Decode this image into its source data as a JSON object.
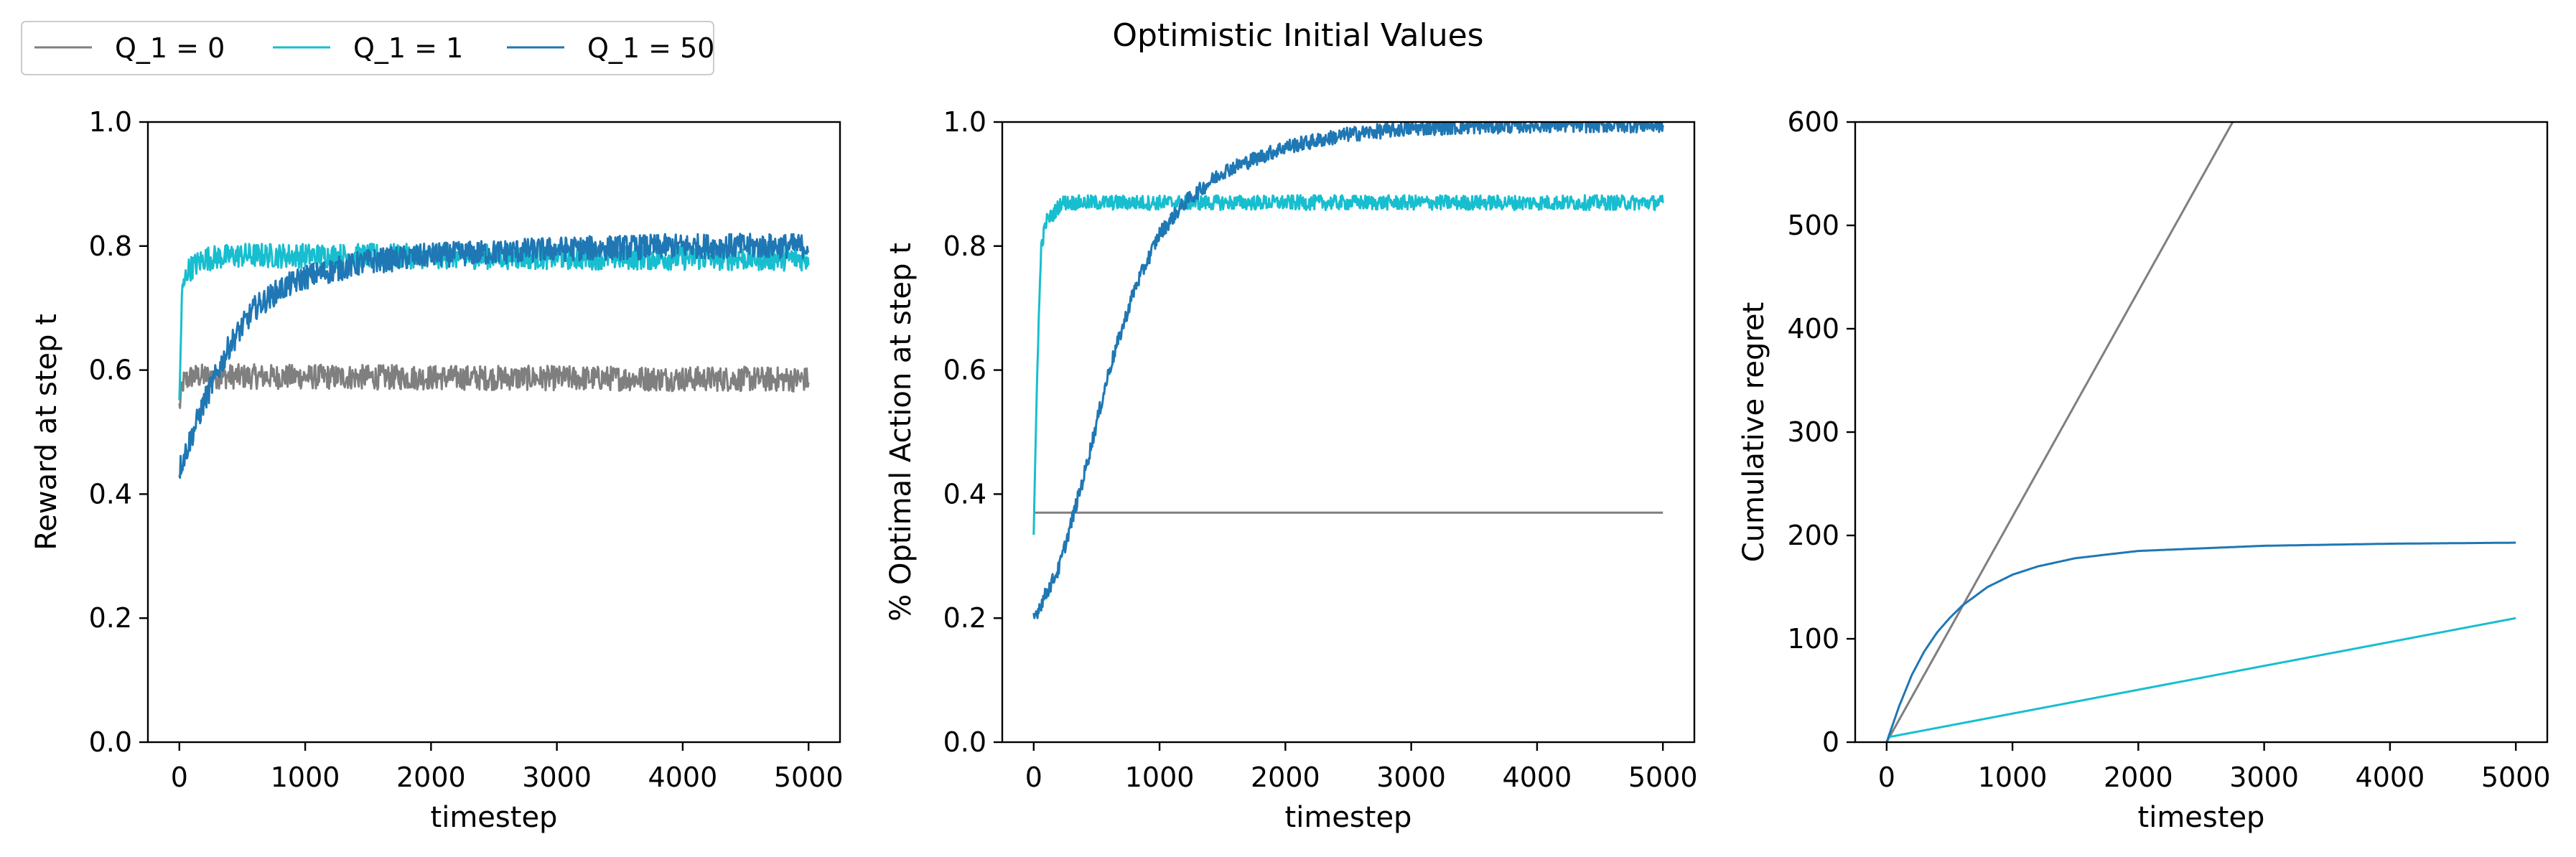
{
  "figure": {
    "title": "Optimistic Initial Values",
    "legend": {
      "placement": "top-left (outside axes)",
      "entries": [
        {
          "label": "Q_1 = 0",
          "color": "#7f7f7f"
        },
        {
          "label": "Q_1 = 1",
          "color": "#17becf"
        },
        {
          "label": "Q_1 = 50",
          "color": "#1f77b4"
        }
      ]
    }
  },
  "chart_data": [
    {
      "type": "line",
      "title": "",
      "xlabel": "timestep",
      "ylabel": "Reward at step t",
      "xlim": [
        -250,
        5250
      ],
      "ylim": [
        0.0,
        1.0
      ],
      "xticks": [
        0,
        1000,
        2000,
        3000,
        4000,
        5000
      ],
      "yticks": [
        0.0,
        0.2,
        0.4,
        0.6,
        0.8,
        1.0
      ],
      "ytick_labels": [
        "0.0",
        "0.2",
        "0.4",
        "0.6",
        "0.8",
        "1.0"
      ],
      "grid": false,
      "noise_amplitude": 0.02,
      "series": [
        {
          "name": "Q_1 = 0",
          "color": "#7f7f7f",
          "points": [
            [
              0,
              0.54
            ],
            [
              30,
              0.58
            ],
            [
              100,
              0.59
            ],
            [
              5000,
              0.585
            ]
          ]
        },
        {
          "name": "Q_1 = 1",
          "color": "#17becf",
          "points": [
            [
              0,
              0.54
            ],
            [
              20,
              0.72
            ],
            [
              60,
              0.76
            ],
            [
              200,
              0.78
            ],
            [
              500,
              0.785
            ],
            [
              5000,
              0.78
            ]
          ]
        },
        {
          "name": "Q_1 = 50",
          "color": "#1f77b4",
          "points": [
            [
              0,
              0.44
            ],
            [
              200,
              0.55
            ],
            [
              400,
              0.64
            ],
            [
              600,
              0.7
            ],
            [
              800,
              0.73
            ],
            [
              1000,
              0.75
            ],
            [
              1500,
              0.775
            ],
            [
              2000,
              0.785
            ],
            [
              3000,
              0.795
            ],
            [
              4000,
              0.8
            ],
            [
              5000,
              0.8
            ]
          ]
        }
      ]
    },
    {
      "type": "line",
      "title": "",
      "xlabel": "timestep",
      "ylabel": "% Optimal Action at step t",
      "xlim": [
        -250,
        5250
      ],
      "ylim": [
        0.0,
        1.0
      ],
      "xticks": [
        0,
        1000,
        2000,
        3000,
        4000,
        5000
      ],
      "yticks": [
        0.0,
        0.2,
        0.4,
        0.6,
        0.8,
        1.0
      ],
      "ytick_labels": [
        "0.0",
        "0.2",
        "0.4",
        "0.6",
        "0.8",
        "1.0"
      ],
      "grid": false,
      "noise_amplitude": 0.012,
      "series": [
        {
          "name": "Q_1 = 0",
          "color": "#7f7f7f",
          "points": [
            [
              0,
              0.37
            ],
            [
              5000,
              0.37
            ]
          ]
        },
        {
          "name": "Q_1 = 1",
          "color": "#17becf",
          "points": [
            [
              0,
              0.33
            ],
            [
              30,
              0.62
            ],
            [
              60,
              0.8
            ],
            [
              100,
              0.84
            ],
            [
              150,
              0.85
            ],
            [
              220,
              0.87
            ],
            [
              5000,
              0.87
            ]
          ]
        },
        {
          "name": "Q_1 = 50",
          "color": "#1f77b4",
          "points": [
            [
              0,
              0.2
            ],
            [
              200,
              0.28
            ],
            [
              400,
              0.43
            ],
            [
              600,
              0.6
            ],
            [
              800,
              0.73
            ],
            [
              1000,
              0.82
            ],
            [
              1200,
              0.87
            ],
            [
              1500,
              0.92
            ],
            [
              2000,
              0.96
            ],
            [
              2500,
              0.98
            ],
            [
              3000,
              0.99
            ],
            [
              4000,
              0.995
            ],
            [
              5000,
              0.995
            ]
          ]
        }
      ]
    },
    {
      "type": "line",
      "title": "",
      "xlabel": "timestep",
      "ylabel": "Cumulative regret",
      "xlim": [
        -250,
        5250
      ],
      "ylim": [
        0,
        600
      ],
      "xticks": [
        0,
        1000,
        2000,
        3000,
        4000,
        5000
      ],
      "yticks": [
        0,
        100,
        200,
        300,
        400,
        500,
        600
      ],
      "ytick_labels": [
        "0",
        "100",
        "200",
        "300",
        "400",
        "500",
        "600"
      ],
      "grid": false,
      "noise_amplitude": 0,
      "series": [
        {
          "name": "Q_1 = 0",
          "color": "#7f7f7f",
          "points": [
            [
              0,
              0
            ],
            [
              2750,
              600
            ]
          ]
        },
        {
          "name": "Q_1 = 1",
          "color": "#17becf",
          "points": [
            [
              0,
              0
            ],
            [
              20,
              5
            ],
            [
              5000,
              120
            ]
          ]
        },
        {
          "name": "Q_1 = 50",
          "color": "#1f77b4",
          "points": [
            [
              0,
              0
            ],
            [
              100,
              35
            ],
            [
              200,
              65
            ],
            [
              300,
              88
            ],
            [
              400,
              106
            ],
            [
              500,
              120
            ],
            [
              600,
              132
            ],
            [
              800,
              150
            ],
            [
              1000,
              162
            ],
            [
              1200,
              170
            ],
            [
              1500,
              178
            ],
            [
              2000,
              185
            ],
            [
              3000,
              190
            ],
            [
              4000,
              192
            ],
            [
              5000,
              193
            ]
          ]
        }
      ]
    }
  ]
}
